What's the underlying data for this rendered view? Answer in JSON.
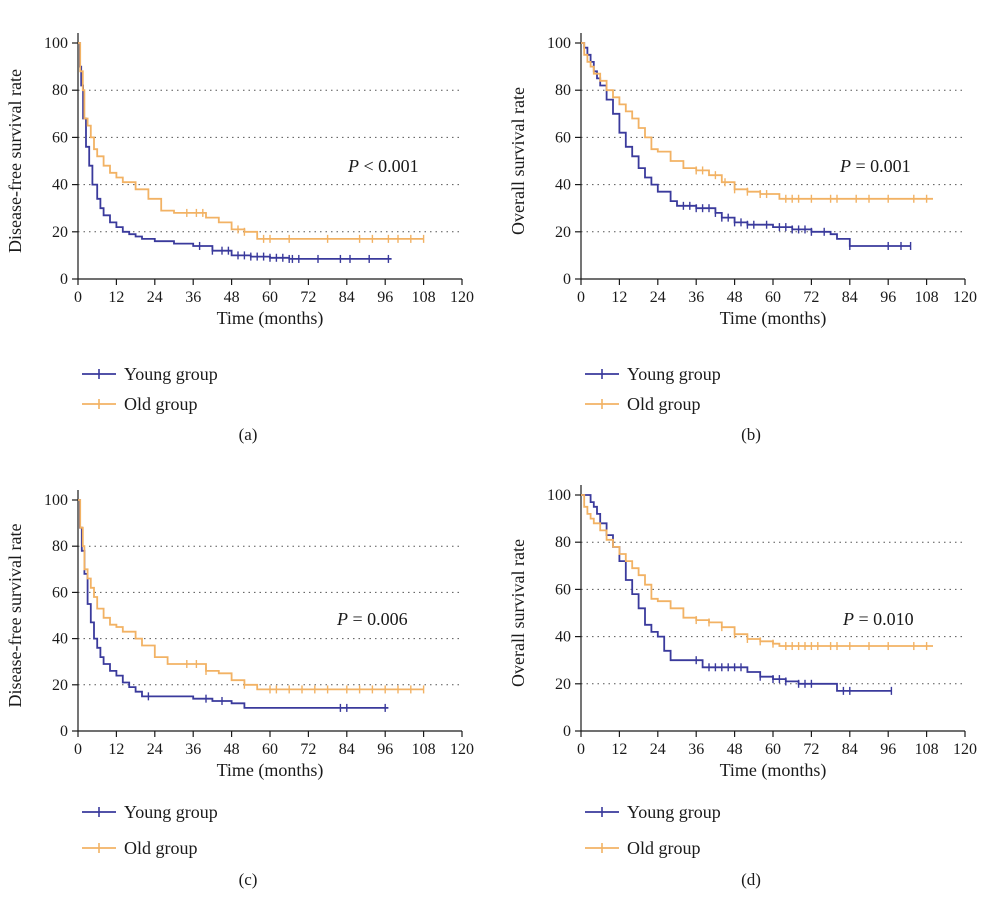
{
  "colors": {
    "young": "#3a3a9c",
    "old": "#f2b264",
    "axis": "#1a1a1a",
    "grid": "#555555"
  },
  "chart_data": [
    {
      "type": "line",
      "panel_label": "(a)",
      "xlabel": "Time (months)",
      "ylabel": "Disease-free survival rate",
      "xlim": [
        0,
        120
      ],
      "ylim": [
        0,
        100
      ],
      "xticks": [
        0,
        12,
        24,
        36,
        48,
        60,
        72,
        84,
        96,
        108,
        120
      ],
      "yticks": [
        0,
        20,
        40,
        60,
        80,
        100
      ],
      "grid": "horizontal dotted at 20, 40, 60, 80",
      "annotation": {
        "prefix": "P",
        "text": " < 0.001"
      },
      "legend_position": "bottom-left",
      "series": [
        {
          "name": "Young group",
          "color": "#3a3a9c",
          "points": [
            [
              0,
              100
            ],
            [
              0.6,
              90
            ],
            [
              1,
              82
            ],
            [
              1.6,
              68
            ],
            [
              2.5,
              56
            ],
            [
              3.5,
              48
            ],
            [
              4.5,
              40
            ],
            [
              6,
              34
            ],
            [
              7,
              30
            ],
            [
              8,
              27
            ],
            [
              10,
              24
            ],
            [
              12,
              22
            ],
            [
              14,
              20
            ],
            [
              16,
              19
            ],
            [
              18,
              18
            ],
            [
              20,
              17
            ],
            [
              24,
              16
            ],
            [
              30,
              15
            ],
            [
              36,
              14
            ],
            [
              42,
              12
            ],
            [
              48,
              10
            ],
            [
              54,
              9.5
            ],
            [
              60,
              9
            ],
            [
              66,
              8.5
            ],
            [
              80,
              8.5
            ],
            [
              98,
              8.5
            ]
          ],
          "censors": [
            38,
            42,
            45,
            47,
            50,
            52,
            54,
            56,
            58,
            60,
            62,
            64,
            66,
            67,
            69,
            75,
            82,
            85,
            91,
            97
          ]
        },
        {
          "name": "Old group",
          "color": "#f2b264",
          "points": [
            [
              0,
              100
            ],
            [
              0.7,
              88
            ],
            [
              1.5,
              80
            ],
            [
              2,
              68
            ],
            [
              3,
              65
            ],
            [
              4,
              60
            ],
            [
              5,
              55
            ],
            [
              6,
              52
            ],
            [
              8,
              48
            ],
            [
              10,
              45
            ],
            [
              12,
              43
            ],
            [
              14,
              41
            ],
            [
              18,
              38
            ],
            [
              22,
              34
            ],
            [
              26,
              29
            ],
            [
              30,
              28
            ],
            [
              36,
              28
            ],
            [
              40,
              26
            ],
            [
              44,
              24
            ],
            [
              48,
              21
            ],
            [
              52,
              20
            ],
            [
              56,
              17
            ],
            [
              108,
              17
            ]
          ],
          "censors": [
            34,
            37,
            39,
            50,
            52,
            58,
            60,
            66,
            78,
            88,
            92,
            97,
            100,
            104,
            108
          ]
        }
      ]
    },
    {
      "type": "line",
      "panel_label": "(b)",
      "xlabel": "Time (months)",
      "ylabel": "Overall survival rate",
      "xlim": [
        0,
        120
      ],
      "ylim": [
        0,
        100
      ],
      "xticks": [
        0,
        12,
        24,
        36,
        48,
        60,
        72,
        84,
        96,
        108,
        120
      ],
      "yticks": [
        0,
        20,
        40,
        60,
        80,
        100
      ],
      "grid": "horizontal dotted at 20, 40, 60, 80",
      "annotation": {
        "prefix": "P",
        "text": " = 0.001"
      },
      "legend_position": "bottom-left",
      "series": [
        {
          "name": "Young group",
          "color": "#3a3a9c",
          "points": [
            [
              0,
              100
            ],
            [
              1,
              98
            ],
            [
              2,
              95
            ],
            [
              3,
              92
            ],
            [
              4,
              88
            ],
            [
              5,
              85
            ],
            [
              6,
              82
            ],
            [
              8,
              76
            ],
            [
              10,
              70
            ],
            [
              12,
              62
            ],
            [
              14,
              56
            ],
            [
              16,
              52
            ],
            [
              18,
              47
            ],
            [
              20,
              43
            ],
            [
              22,
              40
            ],
            [
              24,
              37
            ],
            [
              28,
              33
            ],
            [
              30,
              31
            ],
            [
              36,
              30
            ],
            [
              42,
              28
            ],
            [
              44,
              26
            ],
            [
              48,
              24
            ],
            [
              52,
              23
            ],
            [
              60,
              22
            ],
            [
              66,
              21
            ],
            [
              72,
              20
            ],
            [
              78,
              19
            ],
            [
              80,
              17
            ],
            [
              84,
              14
            ],
            [
              103,
              14
            ]
          ],
          "censors": [
            32,
            34,
            36,
            38,
            40,
            42,
            44,
            46,
            48,
            50,
            52,
            54,
            58,
            62,
            64,
            66,
            68,
            70,
            72,
            76,
            84,
            96,
            100,
            103
          ]
        },
        {
          "name": "Old group",
          "color": "#f2b264",
          "points": [
            [
              0,
              100
            ],
            [
              1,
              95
            ],
            [
              2,
              92
            ],
            [
              3,
              90
            ],
            [
              4,
              87
            ],
            [
              6,
              84
            ],
            [
              8,
              80
            ],
            [
              10,
              77
            ],
            [
              12,
              74
            ],
            [
              14,
              71
            ],
            [
              16,
              68
            ],
            [
              18,
              64
            ],
            [
              20,
              60
            ],
            [
              22,
              55
            ],
            [
              24,
              54
            ],
            [
              28,
              50
            ],
            [
              32,
              47
            ],
            [
              36,
              46
            ],
            [
              40,
              44
            ],
            [
              44,
              41
            ],
            [
              48,
              38
            ],
            [
              52,
              37
            ],
            [
              56,
              36
            ],
            [
              60,
              36
            ],
            [
              62,
              34
            ],
            [
              110,
              34
            ]
          ],
          "censors": [
            36,
            38,
            42,
            45,
            48,
            52,
            56,
            58,
            64,
            66,
            68,
            72,
            78,
            80,
            86,
            90,
            96,
            104,
            108
          ]
        }
      ]
    },
    {
      "type": "line",
      "panel_label": "(c)",
      "xlabel": "Time (months)",
      "ylabel": "Disease-free survival rate",
      "xlim": [
        0,
        120
      ],
      "ylim": [
        0,
        100
      ],
      "xticks": [
        0,
        12,
        24,
        36,
        48,
        60,
        72,
        84,
        96,
        108,
        120
      ],
      "yticks": [
        0,
        20,
        40,
        60,
        80,
        100
      ],
      "grid": "horizontal dotted at 20, 40, 60, 80",
      "annotation": {
        "prefix": "P",
        "text": " = 0.006"
      },
      "legend_position": "bottom-left",
      "series": [
        {
          "name": "Young group",
          "color": "#3a3a9c",
          "points": [
            [
              0,
              100
            ],
            [
              0.6,
              88
            ],
            [
              1.2,
              78
            ],
            [
              2,
              68
            ],
            [
              3,
              55
            ],
            [
              4,
              47
            ],
            [
              5,
              40
            ],
            [
              6,
              36
            ],
            [
              7,
              32
            ],
            [
              8,
              29
            ],
            [
              10,
              26
            ],
            [
              12,
              24
            ],
            [
              14,
              21
            ],
            [
              16,
              19
            ],
            [
              18,
              17
            ],
            [
              20,
              15
            ],
            [
              30,
              15
            ],
            [
              36,
              14
            ],
            [
              42,
              13
            ],
            [
              48,
              12
            ],
            [
              52,
              10
            ],
            [
              60,
              10
            ],
            [
              96,
              10
            ],
            [
              97,
              10
            ]
          ],
          "censors": [
            22,
            40,
            45,
            82,
            84,
            96
          ]
        },
        {
          "name": "Old group",
          "color": "#f2b264",
          "points": [
            [
              0,
              100
            ],
            [
              0.7,
              88
            ],
            [
              1.5,
              80
            ],
            [
              2,
              70
            ],
            [
              3,
              66
            ],
            [
              4,
              62
            ],
            [
              5,
              58
            ],
            [
              6,
              53
            ],
            [
              8,
              49
            ],
            [
              10,
              46
            ],
            [
              12,
              45
            ],
            [
              14,
              43
            ],
            [
              18,
              40
            ],
            [
              20,
              37
            ],
            [
              24,
              32
            ],
            [
              28,
              29
            ],
            [
              36,
              29
            ],
            [
              40,
              26
            ],
            [
              44,
              25
            ],
            [
              48,
              22
            ],
            [
              52,
              20
            ],
            [
              56,
              18
            ],
            [
              108,
              18
            ]
          ],
          "censors": [
            34,
            37,
            40,
            52,
            60,
            62,
            66,
            70,
            74,
            78,
            84,
            88,
            92,
            96,
            100,
            104,
            108
          ]
        }
      ]
    },
    {
      "type": "line",
      "panel_label": "(d)",
      "xlabel": "Time (months)",
      "ylabel": "Overall survival rate",
      "xlim": [
        0,
        120
      ],
      "ylim": [
        0,
        100
      ],
      "xticks": [
        0,
        12,
        24,
        36,
        48,
        60,
        72,
        84,
        96,
        108,
        120
      ],
      "yticks": [
        0,
        20,
        40,
        60,
        80,
        100
      ],
      "grid": "horizontal dotted at 20, 40, 60, 80",
      "annotation": {
        "prefix": "P",
        "text": " = 0.010"
      },
      "legend_position": "bottom-left",
      "series": [
        {
          "name": "Young group",
          "color": "#3a3a9c",
          "points": [
            [
              0,
              100
            ],
            [
              2,
              100
            ],
            [
              3,
              97
            ],
            [
              4,
              95
            ],
            [
              5,
              92
            ],
            [
              6,
              88
            ],
            [
              8,
              83
            ],
            [
              10,
              78
            ],
            [
              12,
              72
            ],
            [
              14,
              64
            ],
            [
              16,
              58
            ],
            [
              18,
              52
            ],
            [
              20,
              45
            ],
            [
              22,
              42
            ],
            [
              24,
              40
            ],
            [
              26,
              34
            ],
            [
              28,
              30
            ],
            [
              36,
              30
            ],
            [
              38,
              27
            ],
            [
              48,
              27
            ],
            [
              52,
              25
            ],
            [
              56,
              23
            ],
            [
              60,
              22
            ],
            [
              64,
              21
            ],
            [
              68,
              20
            ],
            [
              78,
              20
            ],
            [
              80,
              17
            ],
            [
              97,
              17
            ]
          ],
          "censors": [
            36,
            40,
            42,
            44,
            46,
            48,
            50,
            56,
            60,
            62,
            64,
            68,
            70,
            72,
            82,
            84,
            97
          ]
        },
        {
          "name": "Old group",
          "color": "#f2b264",
          "points": [
            [
              0,
              100
            ],
            [
              1,
              95
            ],
            [
              2,
              92
            ],
            [
              3,
              90
            ],
            [
              4,
              88
            ],
            [
              6,
              85
            ],
            [
              8,
              81
            ],
            [
              10,
              78
            ],
            [
              12,
              75
            ],
            [
              14,
              72
            ],
            [
              16,
              69
            ],
            [
              18,
              66
            ],
            [
              20,
              62
            ],
            [
              22,
              56
            ],
            [
              24,
              55
            ],
            [
              28,
              52
            ],
            [
              32,
              48
            ],
            [
              36,
              47
            ],
            [
              40,
              46
            ],
            [
              44,
              44
            ],
            [
              48,
              41
            ],
            [
              52,
              39
            ],
            [
              56,
              38
            ],
            [
              60,
              37
            ],
            [
              62,
              36
            ],
            [
              110,
              36
            ]
          ],
          "censors": [
            36,
            40,
            44,
            48,
            52,
            56,
            60,
            64,
            66,
            68,
            70,
            72,
            74,
            78,
            80,
            84,
            90,
            96,
            104,
            108
          ]
        }
      ]
    }
  ]
}
